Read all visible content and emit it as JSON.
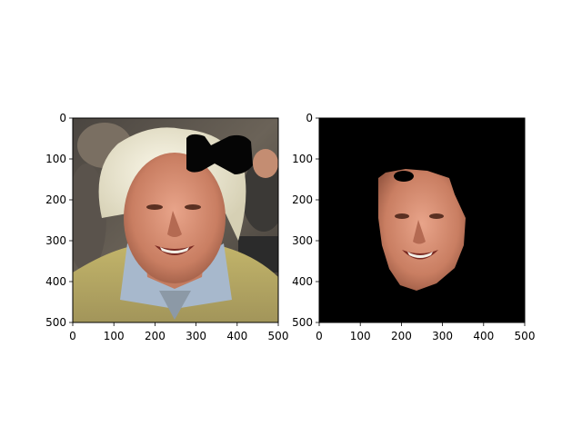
{
  "figure": {
    "background": "#ffffff"
  },
  "chart_data": [
    {
      "type": "image",
      "content": "photo-face-with-occlusion",
      "occluder_color": "#000000",
      "xlim": [
        0,
        500
      ],
      "ylim": [
        500,
        0
      ],
      "xticks": [
        0,
        100,
        200,
        300,
        400,
        500
      ],
      "yticks": [
        0,
        100,
        200,
        300,
        400,
        500
      ],
      "xtick_labels": [
        "0",
        "100",
        "200",
        "300",
        "400",
        "500"
      ],
      "ytick_labels": [
        "0",
        "100",
        "200",
        "300",
        "400",
        "500"
      ],
      "title": "",
      "xlabel": "",
      "ylabel": ""
    },
    {
      "type": "image",
      "content": "segmented-face-mask",
      "background_color": "#000000",
      "xlim": [
        0,
        500
      ],
      "ylim": [
        500,
        0
      ],
      "xticks": [
        0,
        100,
        200,
        300,
        400,
        500
      ],
      "yticks": [
        0,
        100,
        200,
        300,
        400,
        500
      ],
      "xtick_labels": [
        "0",
        "100",
        "200",
        "300",
        "400",
        "500"
      ],
      "ytick_labels": [
        "0",
        "100",
        "200",
        "300",
        "400",
        "500"
      ],
      "title": "",
      "xlabel": "",
      "ylabel": ""
    }
  ]
}
